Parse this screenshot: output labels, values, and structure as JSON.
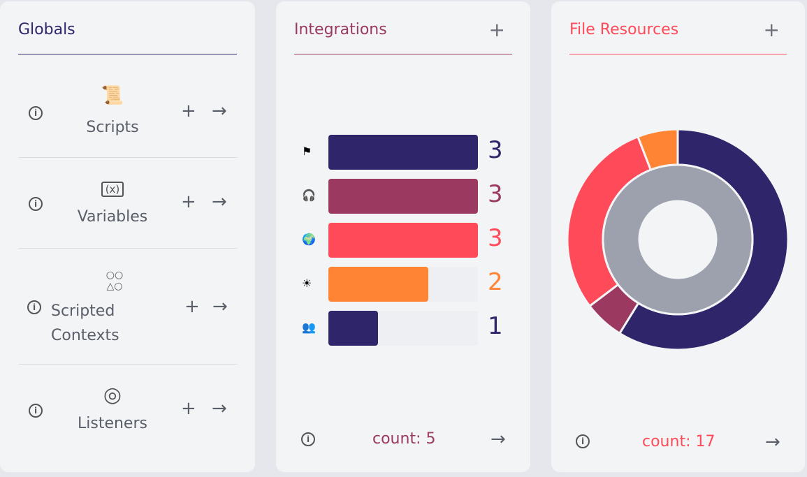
{
  "globals": {
    "title": "Globals",
    "items": [
      {
        "label": "Scripts",
        "icon": "scroll-icon",
        "glyph": "📜"
      },
      {
        "label": "Variables",
        "icon": "variable-icon",
        "glyph": "(x)"
      },
      {
        "label": "Scripted Contexts",
        "icon": "shapes-icon",
        "glyph": "○○ △○"
      },
      {
        "label": "Listeners",
        "icon": "radar-icon",
        "glyph": "◎"
      }
    ],
    "info": "i",
    "plus": "+",
    "arrow": "→"
  },
  "integrations": {
    "title": "Integrations",
    "plus": "+",
    "count": "count: 5",
    "arrow": "→",
    "info": "i",
    "icons": [
      "toolbox-icon",
      "headset-icon",
      "globe-icon",
      "sunrise-icon",
      "people-icon"
    ],
    "glyphs": [
      "⚑",
      "🎧",
      "🌍",
      "☀",
      "👥"
    ]
  },
  "file_resources": {
    "title": "File Resources",
    "plus": "+",
    "count": "count: 17",
    "arrow": "→",
    "info": "i"
  },
  "colors": {
    "navy": "#2e256b",
    "maroon": "#9b3960",
    "red": "#ff4a5a",
    "orange": "#ff8433",
    "grey": "#9ca1ad"
  },
  "chart_data": [
    {
      "type": "bar",
      "orientation": "horizontal",
      "values": [
        3,
        3,
        3,
        2,
        1
      ],
      "colors": [
        "#2e256b",
        "#9b3960",
        "#ff4a5a",
        "#ff8433",
        "#2e256b"
      ],
      "xlim": [
        0,
        3
      ]
    },
    {
      "type": "pie",
      "style": "nested-donut",
      "outer": {
        "values": [
          10,
          1,
          5,
          1
        ],
        "colors": [
          "#2e256b",
          "#9b3960",
          "#ff4a5a",
          "#ff8433"
        ]
      },
      "inner": {
        "values": [
          17
        ],
        "colors": [
          "#9ca1ad"
        ]
      }
    }
  ]
}
